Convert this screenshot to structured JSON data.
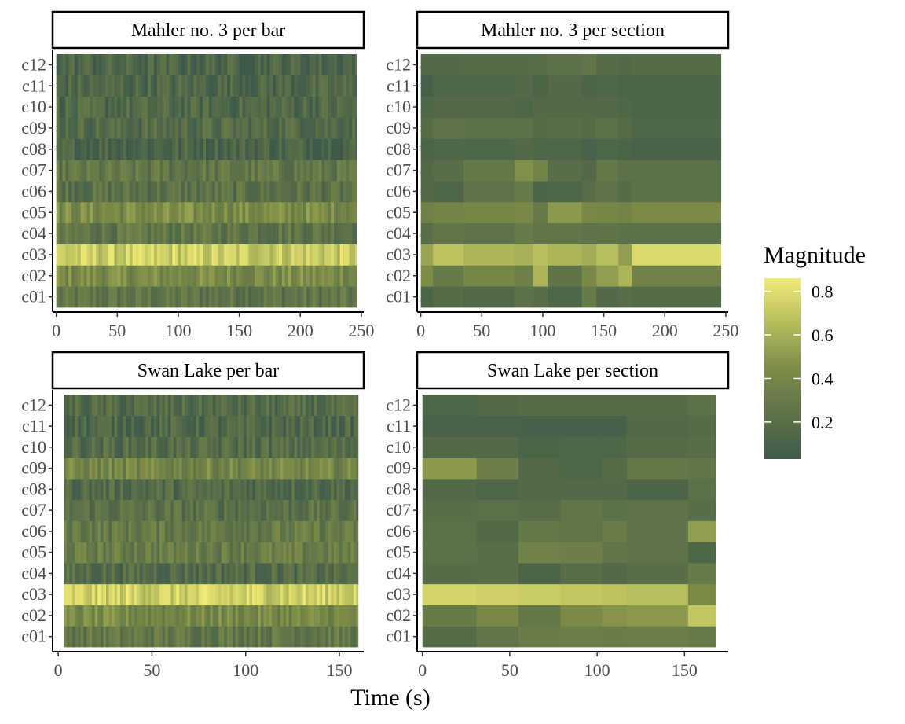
{
  "figure": {
    "xlabel": "Time (s)",
    "legend": {
      "title": "Magnitude",
      "ticks": [
        0.2,
        0.4,
        0.6,
        0.8
      ],
      "labels": [
        "0.2",
        "0.4",
        "0.6",
        "0.8"
      ],
      "range": [
        0.03,
        0.86
      ],
      "placement": "right"
    }
  },
  "colors": {
    "low": "#3f5a4a",
    "mid": "#7c8c47",
    "high": "#f0ec74",
    "frame": "#000000"
  },
  "chart_data": [
    {
      "type": "heatmap",
      "title": "Mahler no. 3 per bar",
      "y_categories": [
        "c01",
        "c02",
        "c03",
        "c04",
        "c05",
        "c06",
        "c07",
        "c08",
        "c09",
        "c10",
        "c11",
        "c12"
      ],
      "x_range": [
        0,
        246
      ],
      "xlim": [
        -3,
        252
      ],
      "x_ticks": [
        0,
        50,
        100,
        150,
        200,
        250
      ],
      "x_tick_labels": [
        "0",
        "50",
        "100",
        "150",
        "200",
        "250"
      ],
      "resolution": "per bar (~2.5 s columns, values vary around row means)",
      "row_mean_values": {
        "c01": 0.25,
        "c02": 0.42,
        "c03": 0.72,
        "c04": 0.26,
        "c05": 0.42,
        "c06": 0.22,
        "c07": 0.26,
        "c08": 0.12,
        "c09": 0.18,
        "c10": 0.15,
        "c11": 0.14,
        "c12": 0.13
      }
    },
    {
      "type": "heatmap",
      "title": "Mahler no. 3 per section",
      "y_categories": [
        "c01",
        "c02",
        "c03",
        "c04",
        "c05",
        "c06",
        "c07",
        "c08",
        "c09",
        "c10",
        "c11",
        "c12"
      ],
      "x_edges": [
        0,
        10,
        35,
        77,
        92,
        104,
        132,
        144,
        162,
        173,
        246
      ],
      "x_ticks": [
        0,
        50,
        100,
        150,
        200,
        250
      ],
      "x_tick_labels": [
        "0",
        "50",
        "100",
        "150",
        "200",
        "250"
      ],
      "xlim": [
        -3,
        252
      ],
      "values": {
        "c01": [
          0.12,
          0.18,
          0.15,
          0.22,
          0.2,
          0.14,
          0.3,
          0.16,
          0.2,
          0.18
        ],
        "c02": [
          0.45,
          0.3,
          0.4,
          0.35,
          0.62,
          0.25,
          0.42,
          0.52,
          0.62,
          0.36
        ],
        "c03": [
          0.55,
          0.68,
          0.62,
          0.6,
          0.66,
          0.62,
          0.58,
          0.66,
          0.52,
          0.78
        ],
        "c04": [
          0.2,
          0.26,
          0.24,
          0.3,
          0.26,
          0.26,
          0.24,
          0.25,
          0.22,
          0.22
        ],
        "c05": [
          0.35,
          0.38,
          0.4,
          0.42,
          0.3,
          0.5,
          0.42,
          0.4,
          0.38,
          0.44
        ],
        "c06": [
          0.15,
          0.14,
          0.24,
          0.3,
          0.12,
          0.14,
          0.2,
          0.24,
          0.18,
          0.22
        ],
        "c07": [
          0.15,
          0.2,
          0.28,
          0.46,
          0.38,
          0.2,
          0.16,
          0.28,
          0.22,
          0.22
        ],
        "c08": [
          0.12,
          0.14,
          0.14,
          0.16,
          0.14,
          0.14,
          0.1,
          0.14,
          0.12,
          0.1
        ],
        "c09": [
          0.18,
          0.24,
          0.22,
          0.22,
          0.18,
          0.2,
          0.18,
          0.22,
          0.18,
          0.14
        ],
        "c10": [
          0.14,
          0.15,
          0.15,
          0.14,
          0.16,
          0.15,
          0.16,
          0.15,
          0.14,
          0.12
        ],
        "c11": [
          0.08,
          0.14,
          0.14,
          0.16,
          0.12,
          0.16,
          0.12,
          0.14,
          0.12,
          0.12
        ],
        "c12": [
          0.16,
          0.16,
          0.18,
          0.18,
          0.2,
          0.22,
          0.26,
          0.18,
          0.16,
          0.18
        ]
      }
    },
    {
      "type": "heatmap",
      "title": "Swan Lake per bar",
      "y_categories": [
        "c01",
        "c02",
        "c03",
        "c04",
        "c05",
        "c06",
        "c07",
        "c08",
        "c09",
        "c10",
        "c11",
        "c12"
      ],
      "x_range": [
        3,
        160
      ],
      "xlim": [
        -3,
        163
      ],
      "x_ticks": [
        0,
        50,
        100,
        150
      ],
      "x_tick_labels": [
        "0",
        "50",
        "100",
        "150"
      ],
      "resolution": "per bar (~1.5 s columns, values vary around row means)",
      "row_mean_values": {
        "c01": 0.28,
        "c02": 0.4,
        "c03": 0.74,
        "c04": 0.18,
        "c05": 0.32,
        "c06": 0.3,
        "c07": 0.22,
        "c08": 0.17,
        "c09": 0.38,
        "c10": 0.18,
        "c11": 0.14,
        "c12": 0.16
      }
    },
    {
      "type": "heatmap",
      "title": "Swan Lake per section",
      "y_categories": [
        "c01",
        "c02",
        "c03",
        "c04",
        "c05",
        "c06",
        "c07",
        "c08",
        "c09",
        "c10",
        "c11",
        "c12"
      ],
      "x_edges": [
        0,
        31,
        55,
        79,
        103,
        117,
        152,
        168
      ],
      "x_ticks": [
        0,
        50,
        100,
        150
      ],
      "x_tick_labels": [
        "0",
        "50",
        "100",
        "150"
      ],
      "xlim": [
        -3,
        175
      ],
      "values": {
        "c01": [
          0.18,
          0.26,
          0.32,
          0.34,
          0.32,
          0.34,
          0.3
        ],
        "c02": [
          0.3,
          0.42,
          0.28,
          0.44,
          0.48,
          0.5,
          0.7
        ],
        "c03": [
          0.76,
          0.74,
          0.72,
          0.7,
          0.68,
          0.66,
          0.44
        ],
        "c04": [
          0.18,
          0.2,
          0.12,
          0.2,
          0.16,
          0.2,
          0.3
        ],
        "c05": [
          0.22,
          0.2,
          0.36,
          0.34,
          0.26,
          0.24,
          0.14
        ],
        "c06": [
          0.22,
          0.16,
          0.28,
          0.26,
          0.32,
          0.24,
          0.52
        ],
        "c07": [
          0.2,
          0.22,
          0.2,
          0.26,
          0.22,
          0.24,
          0.2
        ],
        "c08": [
          0.16,
          0.14,
          0.16,
          0.16,
          0.16,
          0.12,
          0.22
        ],
        "c09": [
          0.5,
          0.34,
          0.16,
          0.14,
          0.18,
          0.28,
          0.26
        ],
        "c10": [
          0.16,
          0.16,
          0.12,
          0.14,
          0.14,
          0.18,
          0.2
        ],
        "c11": [
          0.1,
          0.1,
          0.09,
          0.09,
          0.09,
          0.16,
          0.18
        ],
        "c12": [
          0.14,
          0.16,
          0.18,
          0.18,
          0.18,
          0.18,
          0.22
        ]
      }
    }
  ]
}
